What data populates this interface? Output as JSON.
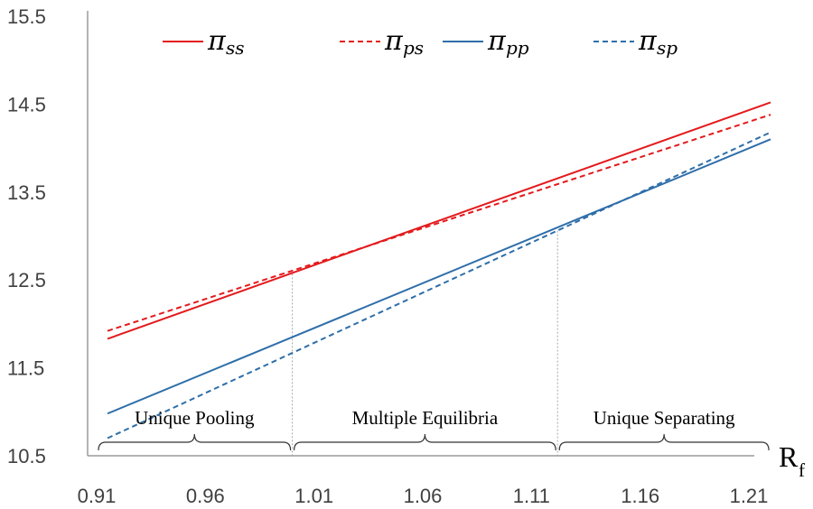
{
  "chart_data": {
    "type": "line",
    "xlabel": "R",
    "xlabel_sub": "f",
    "x_ticks": [
      "0.91",
      "0.96",
      "1.01",
      "1.06",
      "1.11",
      "1.16",
      "1.21"
    ],
    "y_ticks": [
      "10.5",
      "11.5",
      "12.5",
      "13.5",
      "14.5",
      "15.5"
    ],
    "xlim": [
      0.91,
      1.21
    ],
    "ylim": [
      10.5,
      15.5
    ],
    "grid": false,
    "legend_position": "top",
    "series": [
      {
        "name": "π",
        "sub": "ss",
        "color": "#e31a1c",
        "dash": false,
        "x": [
          0.915,
          1.22
        ],
        "y": [
          11.83,
          14.52
        ]
      },
      {
        "name": "π",
        "sub": "ps",
        "color": "#e31a1c",
        "dash": true,
        "x": [
          0.915,
          1.22
        ],
        "y": [
          11.92,
          14.38
        ]
      },
      {
        "name": "π",
        "sub": "pp",
        "color": "#2e6ea9",
        "dash": false,
        "x": [
          0.915,
          1.22
        ],
        "y": [
          10.98,
          14.1
        ]
      },
      {
        "name": "π",
        "sub": "sp",
        "color": "#2e6ea9",
        "dash": true,
        "x": [
          0.915,
          1.22
        ],
        "y": [
          10.7,
          14.18
        ]
      }
    ],
    "thresholds": [
      1.0,
      1.122
    ],
    "regions": [
      {
        "label": "Unique Pooling",
        "from": 0.91,
        "to": 1.0
      },
      {
        "label": "Multiple Equilibria",
        "from": 1.0,
        "to": 1.122
      },
      {
        "label": "Unique Separating",
        "from": 1.122,
        "to": 1.22
      }
    ]
  }
}
